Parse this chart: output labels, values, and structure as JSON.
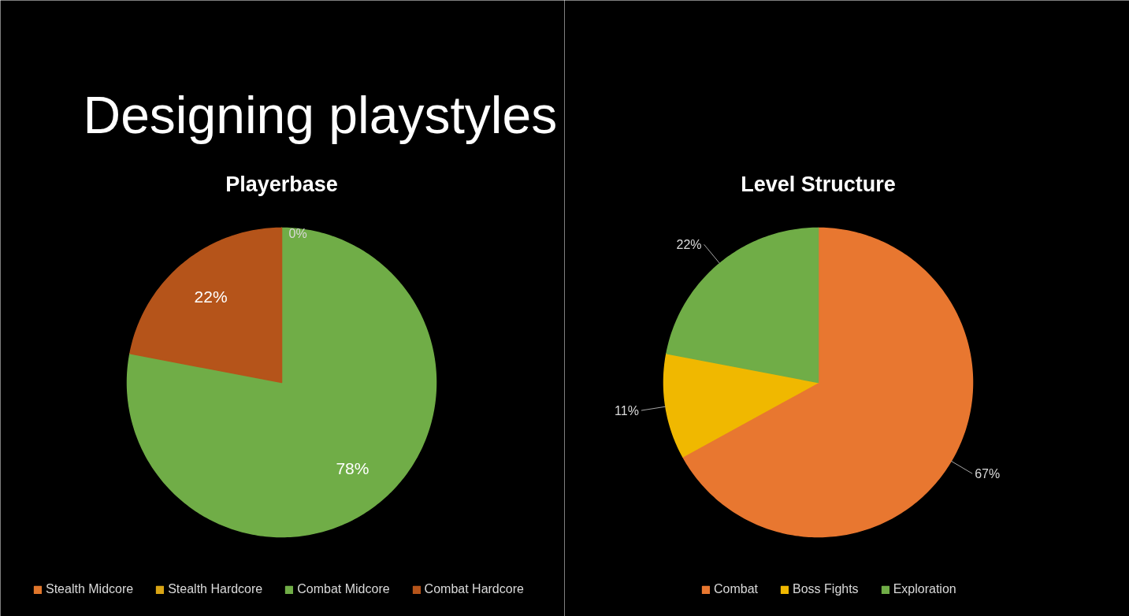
{
  "chart_data": [
    {
      "type": "pie",
      "title": "Playerbase",
      "annotations": [
        "Designing playstyles"
      ],
      "categories": [
        "Stealth Midcore",
        "Stealth Hardcore",
        "Combat Midcore",
        "Combat Hardcore"
      ],
      "values": [
        0,
        0,
        78,
        22
      ],
      "colors": [
        "#e0762b",
        "#d9a514",
        "#70ad47",
        "#b5541a"
      ],
      "value_labels": [
        null,
        "0%",
        "78%",
        "22%"
      ],
      "legend": "bottom"
    },
    {
      "type": "pie",
      "title": "Level Structure",
      "categories": [
        "Combat",
        "Boss Fights",
        "Exploration"
      ],
      "values": [
        67,
        11,
        22
      ],
      "colors": [
        "#e87730",
        "#f0b800",
        "#70ad47"
      ],
      "value_labels": [
        "67%",
        "11%",
        "22%"
      ],
      "legend": "bottom"
    }
  ]
}
